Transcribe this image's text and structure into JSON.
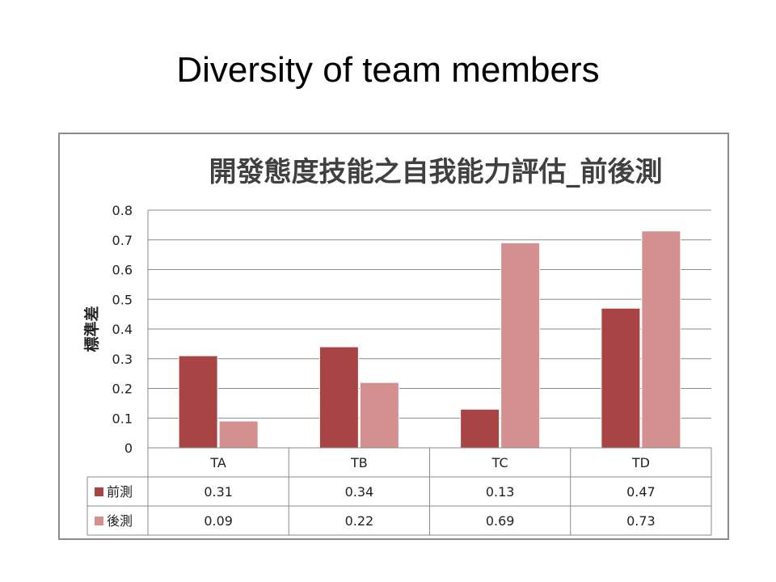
{
  "slide": {
    "title": "Diversity of team members"
  },
  "chart_data": {
    "type": "bar",
    "title": "開發態度技能之自我能力評估_前後測",
    "ylabel": "標準差",
    "xlabel": "",
    "ylim": [
      0,
      0.8
    ],
    "yticks": [
      0,
      0.1,
      0.2,
      0.3,
      0.4,
      0.5,
      0.6,
      0.7,
      0.8
    ],
    "ytick_labels": [
      "0",
      "0.1",
      "0.2",
      "0.3",
      "0.4",
      "0.5",
      "0.6",
      "0.7",
      "0.8"
    ],
    "grid": true,
    "legend": "data-table",
    "categories": [
      "TA",
      "TB",
      "TC",
      "TD"
    ],
    "series": [
      {
        "name": "前測",
        "color": "#a84444",
        "values": [
          0.31,
          0.34,
          0.13,
          0.47
        ]
      },
      {
        "name": "後測",
        "color": "#d48f8f",
        "values": [
          0.09,
          0.22,
          0.69,
          0.73
        ]
      }
    ],
    "table_labels": [
      [
        "0.31",
        "0.34",
        "0.13",
        "0.47"
      ],
      [
        "0.09",
        "0.22",
        "0.69",
        "0.73"
      ]
    ]
  }
}
